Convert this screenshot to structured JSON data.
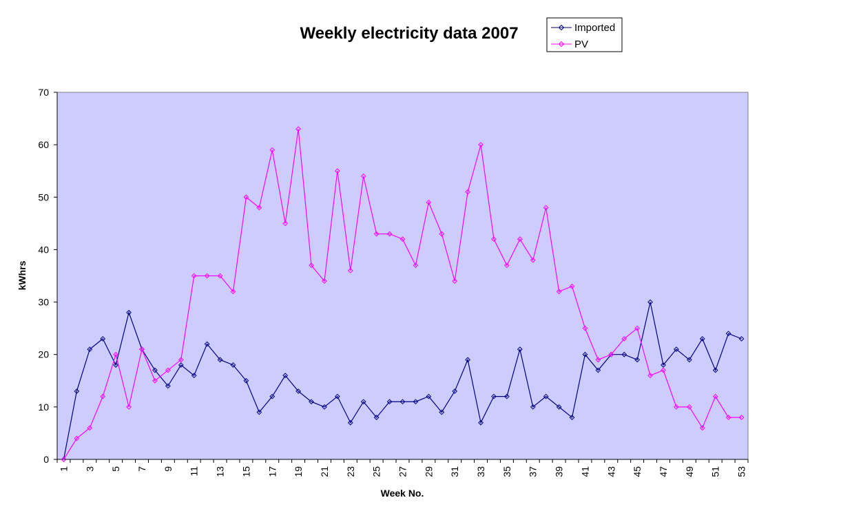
{
  "chart_data": {
    "type": "line",
    "title": "Weekly electricity data 2007",
    "xlabel": "Week No.",
    "ylabel": "kWhrs",
    "ylim": [
      0,
      70
    ],
    "yticks": [
      0,
      10,
      20,
      30,
      40,
      50,
      60,
      70
    ],
    "x": [
      1,
      2,
      3,
      4,
      5,
      6,
      7,
      8,
      9,
      10,
      11,
      12,
      13,
      14,
      15,
      16,
      17,
      18,
      19,
      20,
      21,
      22,
      23,
      24,
      25,
      26,
      27,
      28,
      29,
      30,
      31,
      32,
      33,
      34,
      35,
      36,
      37,
      38,
      39,
      40,
      41,
      42,
      43,
      44,
      45,
      46,
      47,
      48,
      49,
      50,
      51,
      52,
      53
    ],
    "xtick_labels": [
      1,
      3,
      5,
      7,
      9,
      11,
      13,
      15,
      17,
      19,
      21,
      23,
      25,
      27,
      29,
      31,
      33,
      35,
      37,
      39,
      41,
      43,
      45,
      47,
      49,
      51,
      53
    ],
    "grid": false,
    "legend_position": "top-right",
    "plot_background": "#ccccff",
    "series": [
      {
        "name": "Imported",
        "color": "#000080",
        "marker": "diamond",
        "values": [
          0,
          13,
          21,
          23,
          18,
          28,
          21,
          17,
          14,
          18,
          16,
          22,
          19,
          18,
          15,
          9,
          12,
          16,
          13,
          11,
          10,
          12,
          7,
          11,
          8,
          11,
          11,
          11,
          12,
          9,
          13,
          19,
          7,
          12,
          12,
          21,
          10,
          12,
          10,
          8,
          20,
          17,
          20,
          20,
          19,
          30,
          18,
          21,
          19,
          23,
          17,
          24,
          23
        ]
      },
      {
        "name": "PV",
        "color": "#ff00ff",
        "marker": "diamond",
        "values": [
          0,
          4,
          6,
          12,
          20,
          10,
          21,
          15,
          17,
          19,
          35,
          35,
          35,
          32,
          50,
          48,
          59,
          45,
          63,
          37,
          34,
          55,
          36,
          54,
          43,
          43,
          42,
          37,
          49,
          43,
          34,
          51,
          60,
          42,
          37,
          42,
          38,
          48,
          32,
          33,
          25,
          19,
          20,
          23,
          25,
          16,
          17,
          10,
          10,
          6,
          12,
          8,
          8
        ]
      }
    ]
  }
}
